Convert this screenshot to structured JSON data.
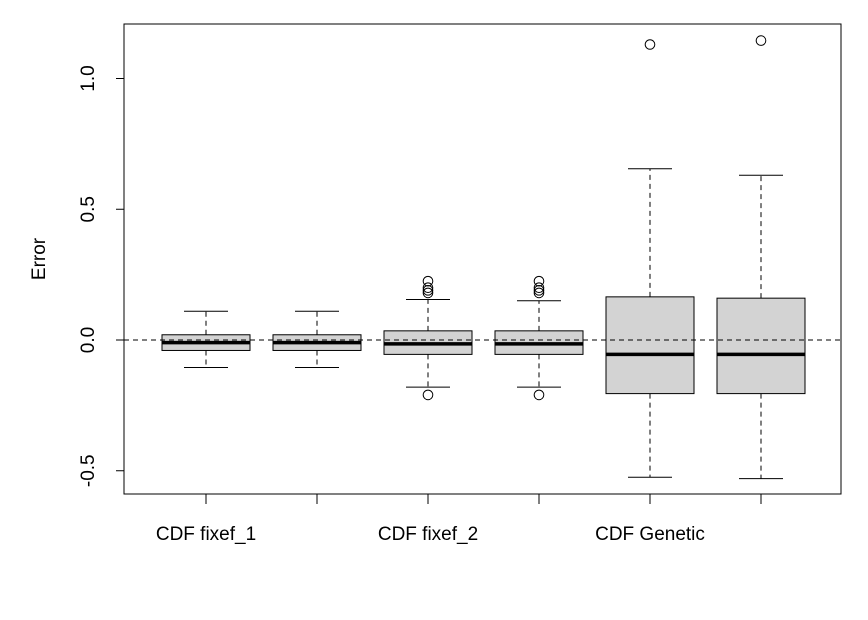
{
  "chart_data": {
    "type": "boxplot",
    "title": "",
    "xlabel": "",
    "ylabel": "Error",
    "ylim": [
      -0.6,
      1.22
    ],
    "yticks": [
      -0.5,
      0.0,
      0.5,
      1.0
    ],
    "ytick_labels": [
      "-0.5",
      "0.0",
      "0.5",
      "1.0"
    ],
    "xtick_labels": [
      "CDF fixef_1",
      "",
      "CDF fixef_2",
      "",
      "CDF Genetic",
      ""
    ],
    "reference_line": 0.0,
    "grid": false,
    "box_fill": "#d3d3d3",
    "line_color": "#000000",
    "boxes": [
      {
        "whisker_low": -0.105,
        "q1": -0.04,
        "median": -0.01,
        "q3": 0.02,
        "whisker_high": 0.11,
        "outliers": []
      },
      {
        "whisker_low": -0.105,
        "q1": -0.04,
        "median": -0.01,
        "q3": 0.02,
        "whisker_high": 0.11,
        "outliers": []
      },
      {
        "whisker_low": -0.18,
        "q1": -0.055,
        "median": -0.015,
        "q3": 0.035,
        "whisker_high": 0.155,
        "outliers": [
          -0.21,
          0.18,
          0.19,
          0.2,
          0.225
        ]
      },
      {
        "whisker_low": -0.18,
        "q1": -0.055,
        "median": -0.015,
        "q3": 0.035,
        "whisker_high": 0.15,
        "outliers": [
          -0.21,
          0.18,
          0.19,
          0.2,
          0.225
        ]
      },
      {
        "whisker_low": -0.525,
        "q1": -0.205,
        "median": -0.055,
        "q3": 0.165,
        "whisker_high": 0.655,
        "outliers": [
          1.13
        ]
      },
      {
        "whisker_low": -0.53,
        "q1": -0.205,
        "median": -0.055,
        "q3": 0.16,
        "whisker_high": 0.63,
        "outliers": [
          1.145
        ]
      }
    ]
  }
}
